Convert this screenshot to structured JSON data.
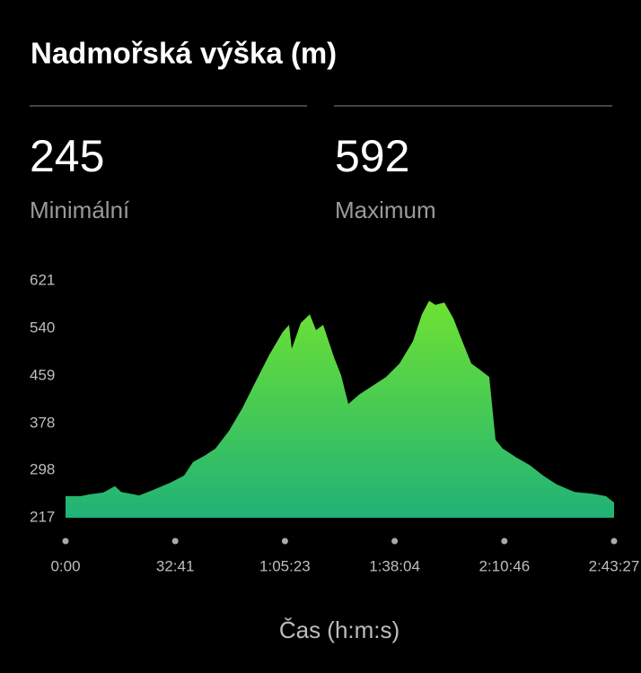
{
  "title": "Nadmořská výška (m)",
  "stats": [
    {
      "value": 245,
      "label": "Minimální"
    },
    {
      "value": 592,
      "label": "Maximum"
    }
  ],
  "chart_data": {
    "type": "area",
    "x_label": "Čas (h:m:s)",
    "x": [
      0,
      273,
      433,
      674,
      883,
      995,
      1316,
      1557,
      1878,
      2119,
      2279,
      2488,
      2680,
      2921,
      3162,
      3403,
      3643,
      3884,
      3996,
      4045,
      4205,
      4366,
      4478,
      4606,
      4799,
      4927,
      5056,
      5248,
      5489,
      5730,
      5971,
      6211,
      6372,
      6500,
      6613,
      6773,
      6934,
      7094,
      7255,
      7415,
      7576,
      7624,
      7688,
      7816,
      8057,
      8298,
      8539,
      8779,
      9100,
      9421,
      9662,
      9807
    ],
    "y": [
      254,
      254,
      257,
      260,
      271,
      261,
      255,
      264,
      277,
      289,
      312,
      323,
      335,
      365,
      404,
      450,
      495,
      534,
      546,
      505,
      549,
      564,
      537,
      546,
      491,
      460,
      411,
      427,
      442,
      457,
      480,
      518,
      564,
      587,
      580,
      584,
      557,
      518,
      480,
      469,
      457,
      411,
      350,
      335,
      320,
      307,
      289,
      274,
      261,
      258,
      254,
      243
    ],
    "xlim": [
      0,
      9807
    ],
    "xticks": [
      {
        "value": 0,
        "label": "0:00"
      },
      {
        "value": 1961,
        "label": "32:41"
      },
      {
        "value": 3923,
        "label": "1:05:23"
      },
      {
        "value": 5884,
        "label": "1:38:04"
      },
      {
        "value": 7846,
        "label": "2:10:46"
      },
      {
        "value": 9807,
        "label": "2:43:27"
      }
    ],
    "ylim": [
      217,
      621
    ],
    "yticks": [
      217,
      298,
      378,
      459,
      540,
      621
    ],
    "colors": [
      "#6ee232",
      "#20b277"
    ],
    "grid": false
  }
}
